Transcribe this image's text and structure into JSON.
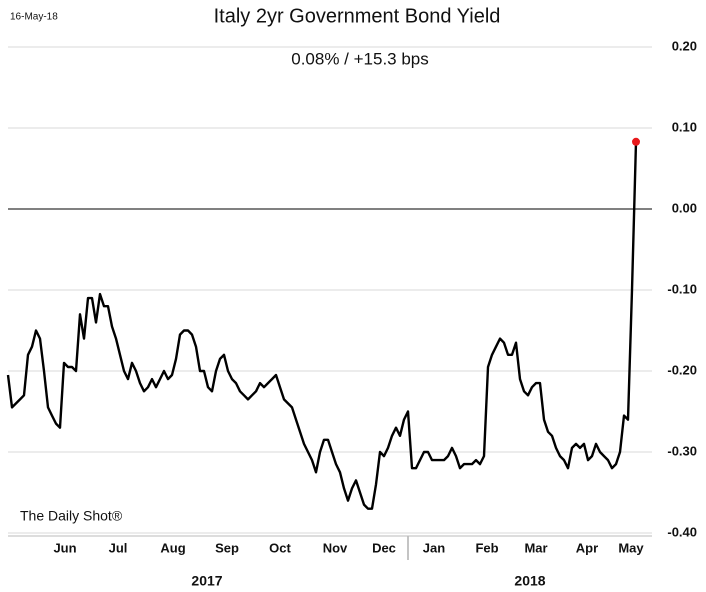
{
  "chart_data": {
    "type": "line",
    "date_label": "16-May-18",
    "title": "Italy 2yr Government Bond Yield",
    "subtitle": "0.08%  /  +15.3 bps",
    "watermark": "The Daily Shot®",
    "xlim": [
      0,
      157
    ],
    "ylim": [
      -0.4,
      0.2
    ],
    "yticks": [
      {
        "value": 0.2,
        "label": "0.20"
      },
      {
        "value": 0.1,
        "label": "0.10"
      },
      {
        "value": 0,
        "label": "0.00"
      },
      {
        "value": -0.1,
        "label": "-0.10"
      },
      {
        "value": -0.2,
        "label": "-0.20"
      },
      {
        "value": -0.3,
        "label": "-0.30"
      },
      {
        "value": -0.4,
        "label": "-0.40"
      }
    ],
    "xticks": [
      {
        "value": 14.25,
        "label": "Jun"
      },
      {
        "value": 27.5,
        "label": "Jul"
      },
      {
        "value": 41.25,
        "label": "Aug"
      },
      {
        "value": 54.75,
        "label": "Sep"
      },
      {
        "value": 68,
        "label": "Oct"
      },
      {
        "value": 81.75,
        "label": "Nov"
      },
      {
        "value": 94,
        "label": "Dec"
      },
      {
        "value": 106.5,
        "label": "Jan"
      },
      {
        "value": 119.75,
        "label": "Feb"
      },
      {
        "value": 132,
        "label": "Mar"
      },
      {
        "value": 144.75,
        "label": "Apr"
      },
      {
        "value": 155.75,
        "label": "May"
      }
    ],
    "year_labels": [
      {
        "value": 49.75,
        "label": "2017"
      },
      {
        "value": 130.5,
        "label": "2018"
      }
    ],
    "grid": true,
    "series": [
      {
        "name": "Italy 2yr",
        "color": "#000000",
        "last_point_color": "#e8191b",
        "values": [
          -0.205,
          -0.245,
          -0.24,
          -0.235,
          -0.23,
          -0.18,
          -0.17,
          -0.15,
          -0.16,
          -0.2,
          -0.245,
          -0.255,
          -0.265,
          -0.27,
          -0.19,
          -0.195,
          -0.195,
          -0.2,
          -0.13,
          -0.16,
          -0.11,
          -0.11,
          -0.14,
          -0.105,
          -0.12,
          -0.12,
          -0.145,
          -0.16,
          -0.18,
          -0.2,
          -0.21,
          -0.19,
          -0.2,
          -0.215,
          -0.225,
          -0.22,
          -0.21,
          -0.22,
          -0.21,
          -0.2,
          -0.21,
          -0.205,
          -0.185,
          -0.155,
          -0.15,
          -0.15,
          -0.155,
          -0.17,
          -0.2,
          -0.2,
          -0.22,
          -0.225,
          -0.2,
          -0.185,
          -0.18,
          -0.2,
          -0.21,
          -0.215,
          -0.225,
          -0.23,
          -0.235,
          -0.23,
          -0.225,
          -0.215,
          -0.22,
          -0.215,
          -0.21,
          -0.205,
          -0.22,
          -0.235,
          -0.24,
          -0.245,
          -0.26,
          -0.275,
          -0.29,
          -0.3,
          -0.31,
          -0.325,
          -0.3,
          -0.285,
          -0.285,
          -0.3,
          -0.315,
          -0.325,
          -0.345,
          -0.36,
          -0.345,
          -0.335,
          -0.35,
          -0.365,
          -0.37,
          -0.37,
          -0.34,
          -0.3,
          -0.305,
          -0.295,
          -0.28,
          -0.27,
          -0.28,
          -0.26,
          -0.25,
          -0.32,
          -0.32,
          -0.31,
          -0.3,
          -0.3,
          -0.31,
          -0.31,
          -0.31,
          -0.31,
          -0.305,
          -0.295,
          -0.305,
          -0.32,
          -0.315,
          -0.315,
          -0.315,
          -0.31,
          -0.315,
          -0.305,
          -0.195,
          -0.18,
          -0.17,
          -0.16,
          -0.165,
          -0.18,
          -0.18,
          -0.165,
          -0.21,
          -0.225,
          -0.23,
          -0.22,
          -0.215,
          -0.215,
          -0.26,
          -0.275,
          -0.28,
          -0.295,
          -0.305,
          -0.31,
          -0.32,
          -0.295,
          -0.29,
          -0.295,
          -0.29,
          -0.31,
          -0.305,
          -0.29,
          -0.3,
          -0.305,
          -0.31,
          -0.32,
          -0.315,
          -0.3,
          -0.255,
          -0.26,
          -0.1,
          0.083
        ]
      }
    ]
  }
}
